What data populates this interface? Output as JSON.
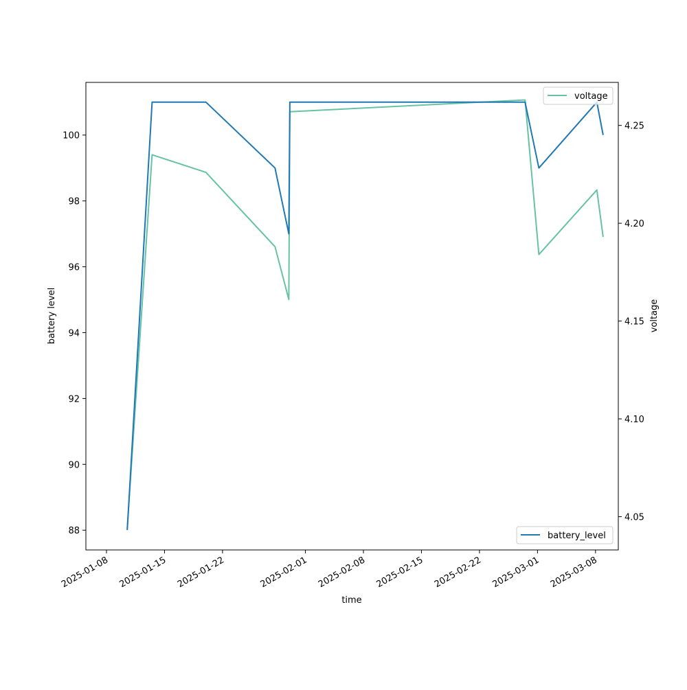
{
  "chart_data": {
    "type": "line",
    "x_axis": {
      "label": "time",
      "tick_labels": [
        "2025-01-08",
        "2025-01-15",
        "2025-01-22",
        "2025-02-01",
        "2025-02-08",
        "2025-02-15",
        "2025-02-22",
        "2025-03-01",
        "2025-03-08"
      ]
    },
    "y_left": {
      "label": "battery level",
      "ylim": [
        87.4,
        101.6
      ],
      "ticks": [
        88,
        90,
        92,
        94,
        96,
        98,
        100
      ],
      "tick_labels": [
        "88",
        "90",
        "92",
        "94",
        "96",
        "98",
        "100"
      ]
    },
    "y_right": {
      "label": "voltage",
      "ylim": [
        4.033,
        4.272
      ],
      "ticks": [
        4.05,
        4.1,
        4.15,
        4.2,
        4.25
      ],
      "tick_labels": [
        "4.05",
        "4.10",
        "4.15",
        "4.20",
        "4.25"
      ]
    },
    "series": [
      {
        "name": "battery_level",
        "axis": "left",
        "color": "#1f77b4",
        "legend_position": "lower-right",
        "x": [
          "2025-01-10 12:00",
          "2025-01-13 12:00",
          "2025-01-20 00:00",
          "2025-01-28 08:00",
          "2025-01-30 00:00",
          "2025-01-30 03:00",
          "2025-02-27 12:00",
          "2025-03-01 04:00",
          "2025-03-08 04:00",
          "2025-03-08 22:00"
        ],
        "values": [
          88,
          101,
          101,
          99,
          97,
          101,
          101,
          99,
          101,
          100
        ]
      },
      {
        "name": "voltage",
        "axis": "right",
        "color": "#66c2a5",
        "legend_position": "upper-right",
        "x": [
          "2025-01-10 12:00",
          "2025-01-13 12:00",
          "2025-01-20 00:00",
          "2025-01-28 08:00",
          "2025-01-30 00:00",
          "2025-01-30 03:00",
          "2025-02-27 12:00",
          "2025-03-01 04:00",
          "2025-03-08 04:00",
          "2025-03-08 22:00"
        ],
        "values": [
          4.044,
          4.235,
          4.226,
          4.188,
          4.161,
          4.257,
          4.263,
          4.184,
          4.217,
          4.193
        ]
      }
    ],
    "grid": false
  }
}
